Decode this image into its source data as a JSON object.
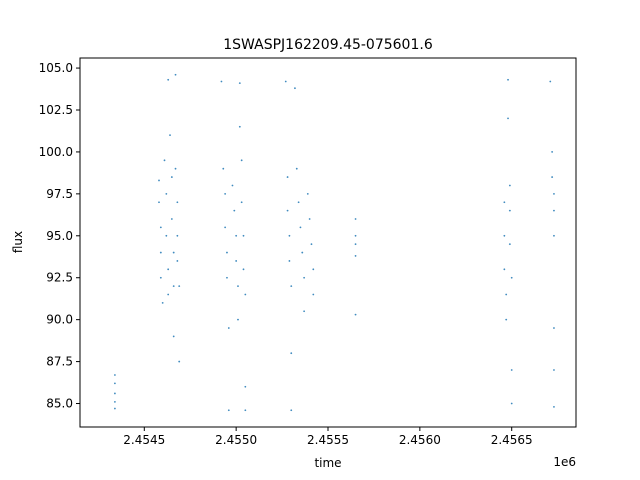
{
  "chart_data": {
    "type": "scatter",
    "title": "1SWASPJ162209.45-075601.6",
    "xlabel": "time",
    "ylabel": "flux",
    "x_offset_label": "1e6",
    "xlim": [
      2.45415,
      2.45685
    ],
    "ylim": [
      83.6,
      105.6
    ],
    "xticks": [
      2.4545,
      2.455,
      2.4555,
      2.456,
      2.4565
    ],
    "xtick_labels": [
      "2.4545",
      "2.4550",
      "2.4555",
      "2.4560",
      "2.4565"
    ],
    "yticks": [
      85.0,
      87.5,
      90.0,
      92.5,
      95.0,
      97.5,
      100.0,
      102.5,
      105.0
    ],
    "ytick_labels": [
      "85.0",
      "87.5",
      "90.0",
      "92.5",
      "95.0",
      "97.5",
      "100.0",
      "102.5",
      "105.0"
    ],
    "grid": false,
    "marker_color": "#1f77b4",
    "series": [
      {
        "points": [
          [
            2.45434,
            86.7
          ],
          [
            2.45434,
            86.2
          ],
          [
            2.45434,
            85.6
          ],
          [
            2.45434,
            85.1
          ],
          [
            2.45434,
            84.7
          ],
          [
            2.45458,
            98.3
          ],
          [
            2.45458,
            97.0
          ],
          [
            2.45459,
            95.5
          ],
          [
            2.45459,
            94.0
          ],
          [
            2.45459,
            92.5
          ],
          [
            2.4546,
            91.0
          ],
          [
            2.45461,
            99.5
          ],
          [
            2.45462,
            97.5
          ],
          [
            2.45462,
            95.0
          ],
          [
            2.45463,
            93.0
          ],
          [
            2.45463,
            91.5
          ],
          [
            2.45463,
            104.3
          ],
          [
            2.45464,
            101.0
          ],
          [
            2.45465,
            98.5
          ],
          [
            2.45465,
            96.0
          ],
          [
            2.45466,
            94.0
          ],
          [
            2.45466,
            92.0
          ],
          [
            2.45466,
            89.0
          ],
          [
            2.45467,
            104.6
          ],
          [
            2.45467,
            99.0
          ],
          [
            2.45468,
            97.0
          ],
          [
            2.45468,
            95.0
          ],
          [
            2.45468,
            93.5
          ],
          [
            2.45469,
            92.0
          ],
          [
            2.45469,
            87.5
          ],
          [
            2.45492,
            104.2
          ],
          [
            2.45493,
            99.0
          ],
          [
            2.45494,
            97.5
          ],
          [
            2.45494,
            95.5
          ],
          [
            2.45495,
            94.0
          ],
          [
            2.45495,
            92.5
          ],
          [
            2.45496,
            89.5
          ],
          [
            2.45496,
            84.6
          ],
          [
            2.45498,
            98.0
          ],
          [
            2.45499,
            96.5
          ],
          [
            2.455,
            95.0
          ],
          [
            2.455,
            93.5
          ],
          [
            2.45501,
            92.0
          ],
          [
            2.45501,
            90.0
          ],
          [
            2.45502,
            104.1
          ],
          [
            2.45502,
            101.5
          ],
          [
            2.45503,
            99.5
          ],
          [
            2.45503,
            97.0
          ],
          [
            2.45504,
            95.0
          ],
          [
            2.45504,
            93.0
          ],
          [
            2.45505,
            91.5
          ],
          [
            2.45505,
            86.0
          ],
          [
            2.45505,
            84.6
          ],
          [
            2.45527,
            104.2
          ],
          [
            2.45528,
            98.5
          ],
          [
            2.45528,
            96.5
          ],
          [
            2.45529,
            95.0
          ],
          [
            2.45529,
            93.5
          ],
          [
            2.4553,
            92.0
          ],
          [
            2.4553,
            88.0
          ],
          [
            2.4553,
            84.6
          ],
          [
            2.45532,
            103.8
          ],
          [
            2.45533,
            99.0
          ],
          [
            2.45534,
            97.0
          ],
          [
            2.45535,
            95.5
          ],
          [
            2.45536,
            94.0
          ],
          [
            2.45537,
            92.5
          ],
          [
            2.45537,
            90.5
          ],
          [
            2.45539,
            97.5
          ],
          [
            2.4554,
            96.0
          ],
          [
            2.45541,
            94.5
          ],
          [
            2.45542,
            93.0
          ],
          [
            2.45542,
            91.5
          ],
          [
            2.45565,
            96.0
          ],
          [
            2.45565,
            95.0
          ],
          [
            2.45565,
            94.5
          ],
          [
            2.45565,
            93.8
          ],
          [
            2.45565,
            90.3
          ],
          [
            2.45646,
            97.0
          ],
          [
            2.45646,
            95.0
          ],
          [
            2.45646,
            93.0
          ],
          [
            2.45647,
            91.5
          ],
          [
            2.45647,
            90.0
          ],
          [
            2.45648,
            104.3
          ],
          [
            2.45648,
            102.0
          ],
          [
            2.45649,
            98.0
          ],
          [
            2.45649,
            96.5
          ],
          [
            2.45649,
            94.5
          ],
          [
            2.4565,
            92.5
          ],
          [
            2.4565,
            87.0
          ],
          [
            2.4565,
            85.0
          ],
          [
            2.45671,
            104.2
          ],
          [
            2.45672,
            100.0
          ],
          [
            2.45672,
            98.5
          ],
          [
            2.45673,
            97.5
          ],
          [
            2.45673,
            96.5
          ],
          [
            2.45673,
            95.0
          ],
          [
            2.45673,
            89.5
          ],
          [
            2.45673,
            87.0
          ],
          [
            2.45673,
            84.8
          ]
        ]
      }
    ]
  }
}
